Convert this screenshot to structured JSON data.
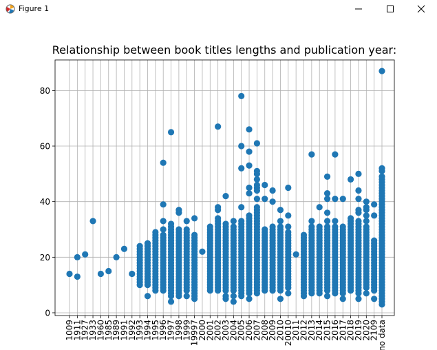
{
  "window": {
    "title": "Figure 1",
    "buttons": [
      "minimize",
      "maximize",
      "close"
    ],
    "icon": "matplotlib-figure-icon"
  },
  "chart_data": {
    "type": "scatter",
    "title": "Relationship between book titles lengths and publication year:",
    "xlabel": "",
    "ylabel": "",
    "ylim": [
      -1,
      91
    ],
    "yticks": [
      0,
      20,
      40,
      60,
      80
    ],
    "grid": true,
    "color": "#1f77b4",
    "categories": [
      "1009",
      "1911",
      "1927",
      "1933",
      "1960",
      "1985",
      "1989",
      "1991",
      "1992",
      "1993",
      "1994",
      "1995",
      "1996",
      "1997",
      "1998",
      "1999",
      "19997",
      "2000",
      "2001",
      "2002",
      "2003",
      "2004",
      "2005",
      "2006",
      "2007",
      "2008",
      "2009",
      "2010",
      "20010",
      "2011",
      "2012",
      "2013",
      "2014",
      "2015",
      "2016",
      "2017",
      "2018",
      "2019",
      "2020",
      "2109",
      "no data"
    ],
    "scatter_points": [
      {
        "x": "1009",
        "y": [
          14
        ]
      },
      {
        "x": "1911",
        "y": [
          13,
          20
        ]
      },
      {
        "x": "1927",
        "y": [
          21
        ]
      },
      {
        "x": "1933",
        "y": [
          33
        ]
      },
      {
        "x": "1960",
        "y": [
          14
        ]
      },
      {
        "x": "1985",
        "y": [
          15
        ]
      },
      {
        "x": "1989",
        "y": [
          20
        ]
      },
      {
        "x": "1991",
        "y": [
          23
        ]
      },
      {
        "x": "1992",
        "y": [
          14
        ]
      },
      {
        "x": "1993",
        "y": [
          10,
          11,
          12,
          13,
          14,
          15,
          16,
          17,
          18,
          19,
          20,
          21,
          22,
          23,
          24
        ]
      },
      {
        "x": "1994",
        "y": [
          6,
          10,
          11,
          12,
          13,
          14,
          15,
          16,
          17,
          18,
          19,
          20,
          21,
          22,
          23,
          24,
          25
        ]
      },
      {
        "x": "1995",
        "y": [
          8,
          9,
          10,
          11,
          12,
          13,
          14,
          15,
          16,
          17,
          18,
          19,
          20,
          21,
          22,
          23,
          24,
          25,
          26,
          27,
          28,
          29
        ]
      },
      {
        "x": "1996",
        "y": [
          8,
          9,
          10,
          11,
          12,
          13,
          14,
          15,
          16,
          17,
          18,
          19,
          20,
          21,
          22,
          23,
          24,
          25,
          26,
          27,
          28,
          30,
          33,
          39,
          54
        ]
      },
      {
        "x": "1997",
        "y": [
          4,
          6,
          7,
          8,
          9,
          10,
          11,
          12,
          13,
          14,
          15,
          16,
          17,
          18,
          19,
          20,
          21,
          22,
          23,
          24,
          25,
          26,
          27,
          28,
          29,
          30,
          31,
          32,
          65
        ]
      },
      {
        "x": "1998",
        "y": [
          6,
          7,
          8,
          9,
          10,
          11,
          12,
          13,
          14,
          15,
          16,
          17,
          18,
          19,
          20,
          21,
          22,
          23,
          24,
          25,
          26,
          27,
          28,
          29,
          30,
          36,
          37
        ]
      },
      {
        "x": "1999",
        "y": [
          6,
          8,
          9,
          10,
          11,
          12,
          13,
          14,
          15,
          16,
          17,
          18,
          19,
          20,
          21,
          22,
          23,
          24,
          25,
          26,
          27,
          28,
          29,
          30,
          33
        ]
      },
      {
        "x": "19997",
        "y": [
          5,
          6,
          7,
          8,
          9,
          10,
          11,
          12,
          13,
          14,
          15,
          16,
          17,
          18,
          19,
          20,
          21,
          22,
          23,
          24,
          25,
          26,
          27,
          28,
          34
        ]
      },
      {
        "x": "2000",
        "y": [
          22
        ]
      },
      {
        "x": "2001",
        "y": [
          8,
          9,
          10,
          11,
          12,
          13,
          14,
          15,
          16,
          17,
          18,
          19,
          20,
          21,
          22,
          23,
          24,
          25,
          26,
          27,
          28,
          29,
          30,
          31
        ]
      },
      {
        "x": "2002",
        "y": [
          8,
          9,
          10,
          11,
          12,
          13,
          14,
          15,
          16,
          17,
          18,
          19,
          20,
          21,
          22,
          23,
          24,
          25,
          26,
          27,
          28,
          29,
          30,
          31,
          32,
          33,
          34,
          37,
          38,
          67
        ]
      },
      {
        "x": "2003",
        "y": [
          5,
          6,
          8,
          9,
          10,
          11,
          12,
          13,
          14,
          15,
          16,
          17,
          18,
          19,
          20,
          21,
          22,
          23,
          24,
          25,
          26,
          27,
          28,
          29,
          30,
          31,
          32,
          42
        ]
      },
      {
        "x": "2004",
        "y": [
          4,
          6,
          8,
          9,
          10,
          11,
          12,
          13,
          14,
          15,
          16,
          17,
          18,
          19,
          20,
          21,
          22,
          23,
          24,
          25,
          26,
          27,
          28,
          29,
          30,
          31,
          33
        ]
      },
      {
        "x": "2005",
        "y": [
          6,
          7,
          8,
          9,
          10,
          11,
          12,
          13,
          14,
          15,
          16,
          17,
          18,
          19,
          20,
          21,
          22,
          23,
          24,
          25,
          26,
          27,
          28,
          29,
          30,
          31,
          32,
          33,
          38,
          52,
          60,
          78
        ]
      },
      {
        "x": "2006",
        "y": [
          5,
          7,
          8,
          9,
          10,
          11,
          12,
          13,
          14,
          15,
          16,
          17,
          18,
          19,
          20,
          21,
          22,
          23,
          24,
          25,
          26,
          27,
          28,
          29,
          30,
          31,
          32,
          33,
          34,
          35,
          43,
          45,
          53,
          58,
          66
        ]
      },
      {
        "x": "2007",
        "y": [
          7,
          8,
          9,
          10,
          11,
          12,
          13,
          14,
          15,
          16,
          17,
          18,
          19,
          20,
          21,
          22,
          23,
          24,
          25,
          26,
          27,
          28,
          29,
          30,
          31,
          32,
          33,
          34,
          35,
          36,
          37,
          38,
          41,
          44,
          45,
          46,
          48,
          50,
          51,
          61
        ]
      },
      {
        "x": "2008",
        "y": [
          8,
          9,
          10,
          11,
          12,
          13,
          14,
          15,
          16,
          17,
          18,
          19,
          20,
          21,
          22,
          23,
          24,
          25,
          26,
          27,
          28,
          29,
          30,
          41,
          46
        ]
      },
      {
        "x": "2009",
        "y": [
          8,
          9,
          10,
          11,
          12,
          13,
          14,
          15,
          16,
          17,
          18,
          19,
          20,
          21,
          22,
          23,
          24,
          25,
          26,
          27,
          28,
          29,
          30,
          31,
          40,
          44
        ]
      },
      {
        "x": "2010",
        "y": [
          5,
          8,
          9,
          10,
          11,
          12,
          13,
          14,
          15,
          16,
          17,
          18,
          19,
          20,
          21,
          22,
          23,
          24,
          25,
          26,
          27,
          28,
          29,
          30,
          31,
          33,
          37
        ]
      },
      {
        "x": "20010",
        "y": [
          7,
          9,
          10,
          11,
          12,
          13,
          14,
          15,
          16,
          17,
          18,
          19,
          20,
          21,
          22,
          23,
          24,
          25,
          26,
          27,
          28,
          29,
          31,
          35,
          45
        ]
      },
      {
        "x": "2011",
        "y": [
          21
        ]
      },
      {
        "x": "2012",
        "y": [
          6,
          7,
          8,
          9,
          10,
          11,
          12,
          13,
          14,
          15,
          16,
          17,
          18,
          19,
          20,
          21,
          22,
          23,
          24,
          25,
          26,
          27,
          28
        ]
      },
      {
        "x": "2013",
        "y": [
          7,
          8,
          9,
          10,
          11,
          12,
          13,
          14,
          15,
          16,
          17,
          18,
          19,
          20,
          21,
          22,
          23,
          24,
          25,
          26,
          27,
          28,
          29,
          30,
          31,
          33,
          57
        ]
      },
      {
        "x": "2014",
        "y": [
          7,
          8,
          9,
          10,
          11,
          12,
          13,
          14,
          15,
          16,
          17,
          18,
          19,
          20,
          21,
          22,
          23,
          24,
          25,
          26,
          27,
          28,
          29,
          30,
          31,
          38
        ]
      },
      {
        "x": "2015",
        "y": [
          6,
          8,
          9,
          10,
          11,
          12,
          13,
          14,
          15,
          16,
          17,
          18,
          19,
          20,
          21,
          22,
          23,
          24,
          25,
          26,
          27,
          28,
          29,
          30,
          31,
          33,
          36,
          41,
          43,
          49
        ]
      },
      {
        "x": "2016",
        "y": [
          7,
          8,
          9,
          10,
          11,
          12,
          13,
          14,
          15,
          16,
          17,
          18,
          19,
          20,
          21,
          22,
          23,
          24,
          25,
          26,
          27,
          28,
          29,
          30,
          31,
          33,
          41,
          57
        ]
      },
      {
        "x": "2017",
        "y": [
          5,
          7,
          8,
          9,
          10,
          11,
          12,
          13,
          14,
          15,
          16,
          17,
          18,
          19,
          20,
          21,
          22,
          23,
          24,
          25,
          26,
          27,
          28,
          29,
          30,
          31,
          41
        ]
      },
      {
        "x": "2018",
        "y": [
          8,
          9,
          10,
          11,
          12,
          13,
          14,
          15,
          16,
          17,
          18,
          19,
          20,
          21,
          22,
          23,
          24,
          25,
          26,
          27,
          28,
          29,
          30,
          31,
          32,
          33,
          34,
          48
        ]
      },
      {
        "x": "2019",
        "y": [
          5,
          7,
          8,
          9,
          10,
          11,
          12,
          13,
          14,
          15,
          16,
          17,
          18,
          19,
          20,
          21,
          22,
          23,
          24,
          25,
          26,
          27,
          28,
          29,
          30,
          31,
          32,
          33,
          36,
          37,
          41,
          44,
          50
        ]
      },
      {
        "x": "2020",
        "y": [
          7,
          9,
          10,
          11,
          12,
          13,
          14,
          15,
          16,
          17,
          18,
          19,
          20,
          21,
          22,
          23,
          24,
          25,
          26,
          27,
          28,
          29,
          30,
          31,
          33,
          35,
          37,
          38,
          40
        ]
      },
      {
        "x": "2109",
        "y": [
          5,
          8,
          9,
          10,
          11,
          12,
          13,
          14,
          15,
          16,
          17,
          18,
          19,
          20,
          21,
          22,
          23,
          24,
          25,
          26,
          35,
          39
        ]
      },
      {
        "x": "no data",
        "y": [
          3,
          4,
          5,
          6,
          7,
          8,
          9,
          10,
          11,
          12,
          13,
          14,
          15,
          16,
          17,
          18,
          19,
          20,
          21,
          22,
          23,
          24,
          25,
          26,
          27,
          28,
          29,
          30,
          31,
          32,
          33,
          34,
          35,
          36,
          37,
          38,
          39,
          40,
          41,
          42,
          43,
          44,
          45,
          46,
          47,
          48,
          49,
          51,
          52,
          87
        ]
      }
    ]
  }
}
